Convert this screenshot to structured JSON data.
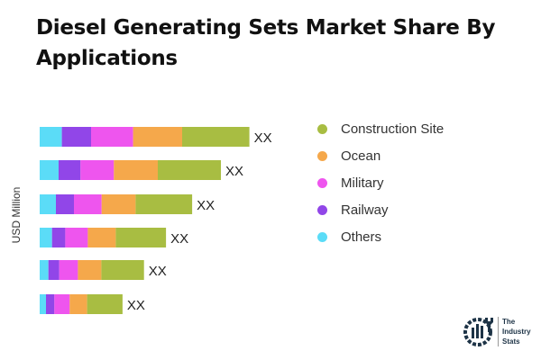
{
  "title": "Diesel Generating Sets Market Share By Applications",
  "chart_data": {
    "type": "bar",
    "orientation": "horizontal",
    "stacked": true,
    "title": "Diesel Generating Sets Market Share By Applications",
    "ylabel": "USD Million",
    "xlabel": "",
    "grid": false,
    "legend_position": "right",
    "categories": [
      "",
      "",
      "",
      "",
      "",
      ""
    ],
    "data_labels": [
      "XX",
      "XX",
      "XX",
      "XX",
      "XX",
      "XX"
    ],
    "series": [
      {
        "name": "Others",
        "color": "#5BDCF7",
        "values": [
          24.6,
          21,
          18,
          13.7,
          9.7,
          7
        ]
      },
      {
        "name": "Railway",
        "color": "#9146E8",
        "values": [
          32.4,
          24.3,
          20,
          14.7,
          12,
          9.3
        ]
      },
      {
        "name": "Military",
        "color": "#EE55EE",
        "values": [
          46.6,
          37,
          30.7,
          25,
          20.7,
          17
        ]
      },
      {
        "name": "Ocean",
        "color": "#F5A84B",
        "values": [
          54.4,
          48.7,
          37.7,
          31,
          26,
          19.3
        ]
      },
      {
        "name": "Construction Site",
        "color": "#A8BD42",
        "values": [
          74.6,
          70,
          62.7,
          55.7,
          47.3,
          39.3
        ]
      }
    ]
  },
  "legend": [
    "Construction Site",
    "Ocean",
    "Military",
    "Railway",
    "Others"
  ],
  "legend_colors": [
    "#A8BD42",
    "#F5A84B",
    "#EE55EE",
    "#9146E8",
    "#5BDCF7"
  ],
  "logo": {
    "text": [
      "The",
      "Industry",
      "Stats"
    ]
  }
}
